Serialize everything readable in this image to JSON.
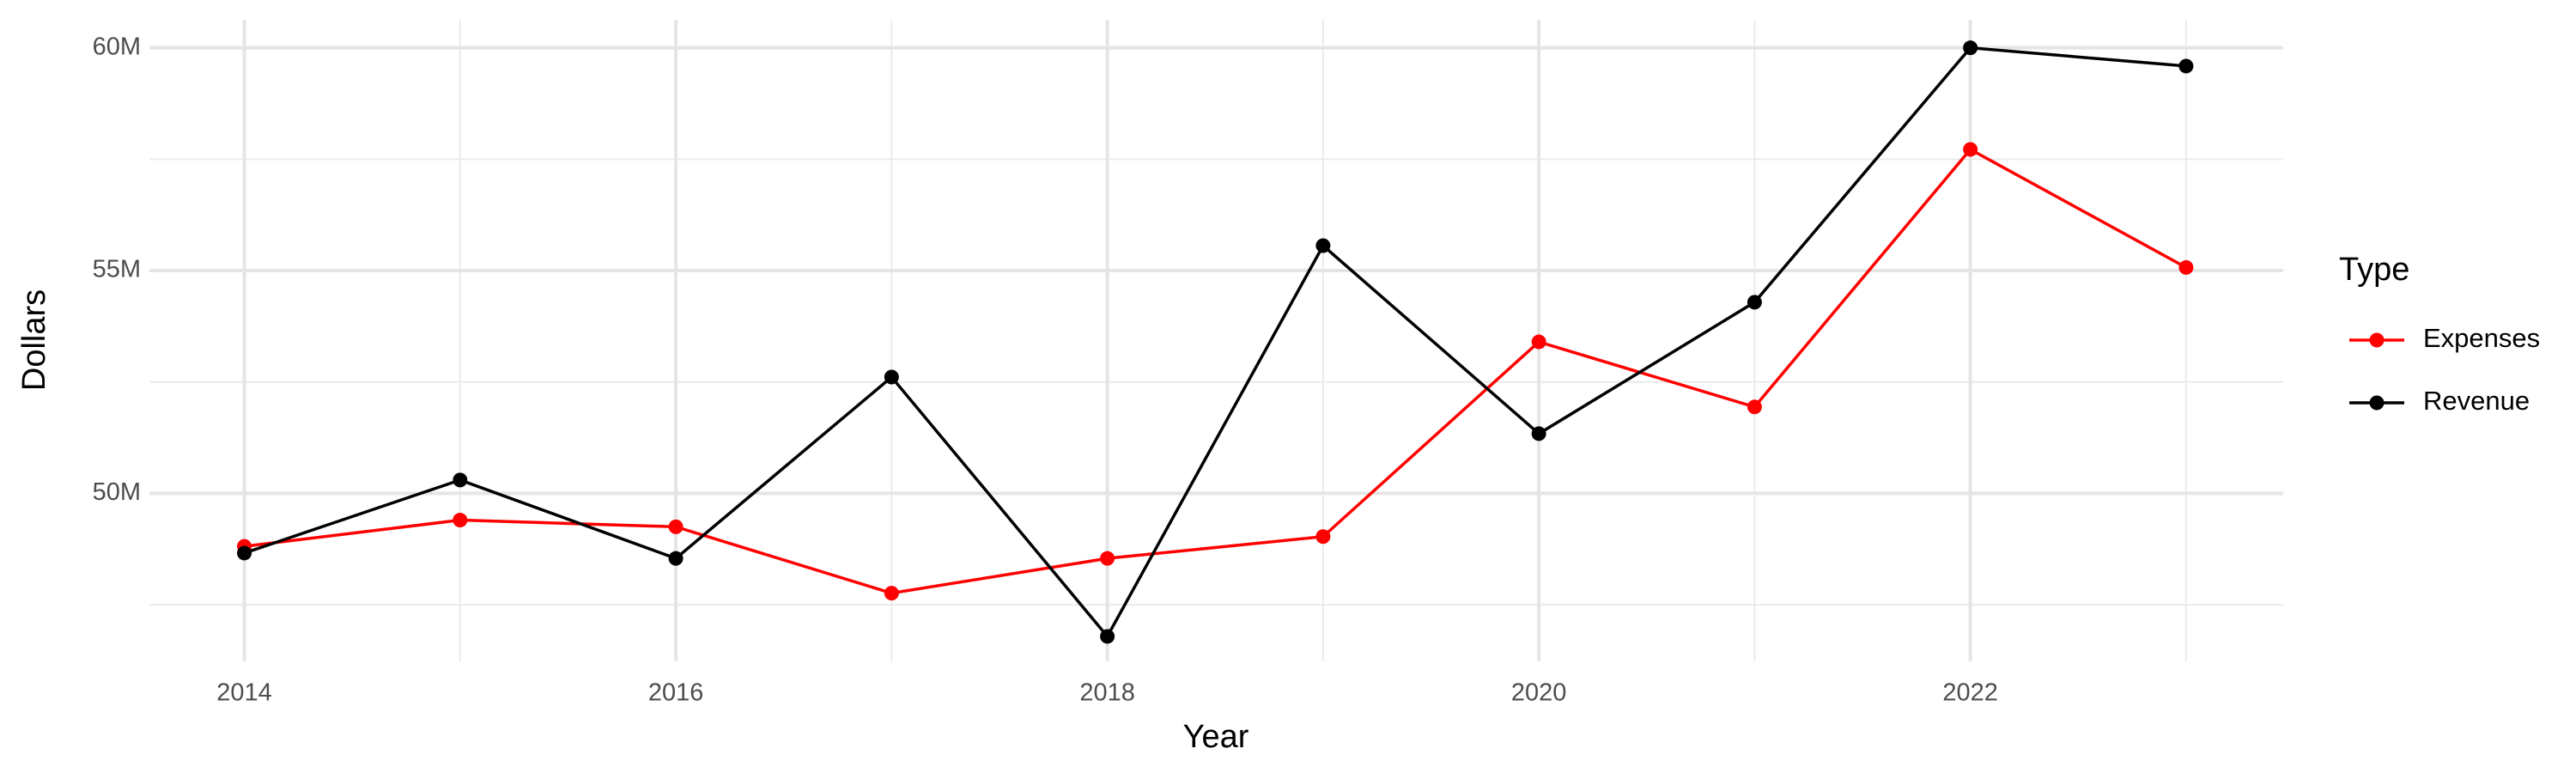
{
  "chart_data": {
    "type": "line",
    "x_label": "Year",
    "y_label": "Dollars",
    "legend_title": "Type",
    "x": [
      2014,
      2015,
      2016,
      2017,
      2018,
      2019,
      2020,
      2021,
      2022,
      2023
    ],
    "series": [
      {
        "name": "Expenses",
        "color": "#ff0000",
        "values": [
          48810000,
          49400000,
          49250000,
          47760000,
          48540000,
          49030000,
          53400000,
          51940000,
          57720000,
          55070000
        ]
      },
      {
        "name": "Revenue",
        "color": "#000000",
        "values": [
          48660000,
          50300000,
          48540000,
          52610000,
          46790000,
          55560000,
          51340000,
          54290000,
          60000000,
          59590000
        ]
      }
    ],
    "xlim": [
      2013.56,
      2023.45
    ],
    "xticks": [
      2014,
      2016,
      2018,
      2020,
      2022
    ],
    "ylim": [
      46230000,
      60630000
    ],
    "yticks": [
      {
        "value": 50000000,
        "label": "50M"
      },
      {
        "value": 55000000,
        "label": "55M"
      },
      {
        "value": 60000000,
        "label": "60M"
      }
    ],
    "grid": true,
    "legend_position": "right"
  }
}
